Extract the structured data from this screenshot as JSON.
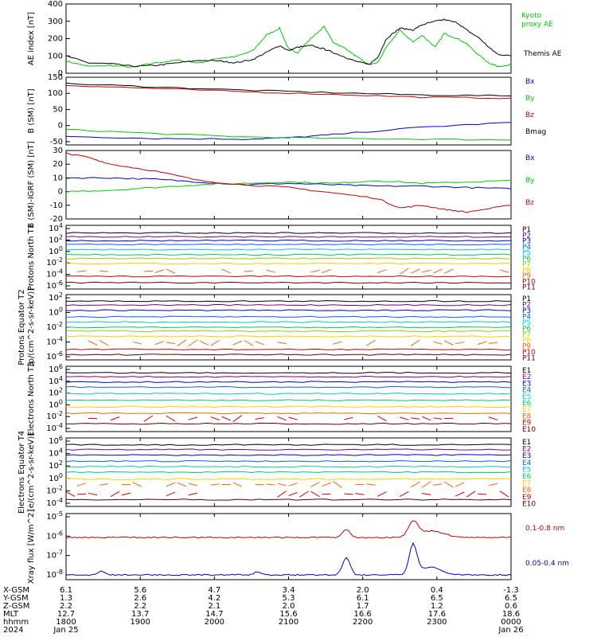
{
  "chart_data": [
    {
      "type": "line",
      "id": "ae",
      "ylabel": "AE index [nT]",
      "ylim": [
        0,
        400
      ],
      "yticks": [
        "0",
        "100",
        "200",
        "300",
        "400"
      ],
      "series": [
        {
          "name": "Kyoto proxy AE",
          "color": "#00cc00",
          "x": [
            0,
            0.05,
            0.1,
            0.15,
            0.2,
            0.25,
            0.3,
            0.35,
            0.38,
            0.42,
            0.45,
            0.48,
            0.5,
            0.52,
            0.55,
            0.58,
            0.6,
            0.63,
            0.65,
            0.68,
            0.7,
            0.72,
            0.75,
            0.78,
            0.8,
            0.83,
            0.85,
            0.88,
            0.9,
            0.93,
            0.95,
            0.97,
            1.0
          ],
          "y": [
            70,
            40,
            45,
            35,
            60,
            75,
            60,
            90,
            95,
            130,
            220,
            260,
            140,
            120,
            200,
            270,
            180,
            140,
            100,
            50,
            60,
            150,
            250,
            180,
            220,
            150,
            230,
            200,
            170,
            100,
            60,
            40,
            50
          ]
        },
        {
          "name": "Themis AE",
          "color": "#000000",
          "x": [
            0,
            0.05,
            0.1,
            0.15,
            0.2,
            0.25,
            0.3,
            0.35,
            0.38,
            0.42,
            0.45,
            0.48,
            0.5,
            0.52,
            0.55,
            0.58,
            0.6,
            0.63,
            0.65,
            0.68,
            0.7,
            0.72,
            0.75,
            0.78,
            0.8,
            0.83,
            0.85,
            0.88,
            0.9,
            0.93,
            0.95,
            0.97,
            1.0
          ],
          "y": [
            100,
            60,
            55,
            40,
            45,
            60,
            75,
            70,
            60,
            80,
            120,
            160,
            130,
            150,
            160,
            140,
            120,
            90,
            70,
            50,
            90,
            200,
            260,
            250,
            280,
            300,
            310,
            290,
            250,
            200,
            150,
            110,
            100
          ]
        }
      ]
    },
    {
      "type": "line",
      "id": "bsm",
      "ylabel": "B (SM) [nT]",
      "ylim": [
        -60,
        150
      ],
      "yticks": [
        "-50",
        "0",
        "50",
        "100",
        "150"
      ],
      "legend": [
        "Bx",
        "By",
        "Bz",
        "Bmag"
      ],
      "series": [
        {
          "name": "Bx",
          "color": "#0000cc",
          "x": [
            0,
            0.2,
            0.4,
            0.5,
            0.6,
            0.8,
            1.0
          ],
          "y": [
            -33,
            -40,
            -42,
            -38,
            -28,
            -5,
            10
          ]
        },
        {
          "name": "By",
          "color": "#00cc00",
          "x": [
            0,
            0.2,
            0.4,
            0.6,
            0.8,
            1.0
          ],
          "y": [
            -12,
            -25,
            -35,
            -40,
            -42,
            -45
          ]
        },
        {
          "name": "Bz",
          "color": "#cc0000",
          "x": [
            0,
            0.2,
            0.4,
            0.6,
            0.8,
            1.0
          ],
          "y": [
            125,
            115,
            105,
            97,
            88,
            85
          ]
        },
        {
          "name": "Bmag",
          "color": "#000000",
          "x": [
            0,
            0.2,
            0.4,
            0.6,
            0.8,
            1.0
          ],
          "y": [
            130,
            120,
            110,
            102,
            95,
            92
          ]
        }
      ]
    },
    {
      "type": "line",
      "id": "bigrf",
      "ylabel": "B (SM)-IGRF (SM) [nT]",
      "ylim": [
        -20,
        30
      ],
      "yticks": [
        "-20",
        "-10",
        "0",
        "10",
        "20",
        "30"
      ],
      "legend": [
        "Bx",
        "By",
        "Bz"
      ],
      "series": [
        {
          "name": "Bx",
          "color": "#0000cc",
          "x": [
            0,
            0.1,
            0.2,
            0.3,
            0.4,
            0.5,
            0.6,
            0.7,
            0.8,
            0.9,
            1.0
          ],
          "y": [
            10,
            10,
            9,
            7,
            5,
            6,
            5,
            4,
            4,
            3,
            2
          ]
        },
        {
          "name": "By",
          "color": "#00cc00",
          "x": [
            0,
            0.1,
            0.2,
            0.3,
            0.4,
            0.5,
            0.6,
            0.7,
            0.8,
            0.9,
            1.0
          ],
          "y": [
            0,
            1,
            3,
            5,
            6,
            7,
            6,
            8,
            6,
            7,
            8
          ]
        },
        {
          "name": "Bz",
          "color": "#cc0000",
          "x": [
            0,
            0.05,
            0.1,
            0.2,
            0.3,
            0.4,
            0.5,
            0.6,
            0.7,
            0.75,
            0.8,
            0.85,
            0.9,
            1.0
          ],
          "y": [
            28,
            25,
            20,
            15,
            8,
            5,
            3,
            -1,
            -5,
            -12,
            -10,
            -13,
            -15,
            -10
          ]
        }
      ]
    },
    {
      "type": "line",
      "id": "pn",
      "ylabel": "Protons North T1",
      "logticks": [
        "10^-6",
        "10^-4",
        "10^-2",
        "10^0",
        "10^2",
        "10^4"
      ],
      "legend": [
        "P1",
        "P2",
        "P3",
        "P4",
        "P5",
        "P6",
        "P7",
        "P8",
        "P9",
        "P10",
        "P11"
      ]
    },
    {
      "type": "line",
      "id": "pe",
      "ylabel": "Protons Equator T2",
      "unit": "[p/(cm^2-s-sr-keV)]",
      "logticks": [
        "10^-6",
        "10^-4",
        "10^-2",
        "10^0",
        "10^2"
      ],
      "legend": [
        "P1",
        "P2",
        "P3",
        "P4",
        "P5",
        "P6",
        "P7",
        "P8",
        "P9",
        "P10",
        "P11"
      ]
    },
    {
      "type": "line",
      "id": "en",
      "ylabel": "Electrons North T3",
      "logticks": [
        "10^-4",
        "10^-2",
        "10^0",
        "10^2",
        "10^4",
        "10^6"
      ],
      "legend": [
        "E1",
        "E2",
        "E3",
        "E4",
        "E5",
        "E6",
        "E7",
        "E8",
        "E9",
        "E10"
      ]
    },
    {
      "type": "line",
      "id": "ee",
      "ylabel": "Electrons Equator T4",
      "unit": "[e/(cm^2-s-sr-keV)]",
      "logticks": [
        "10^-4",
        "10^-2",
        "10^0",
        "10^2",
        "10^4",
        "10^6"
      ],
      "legend": [
        "E1",
        "E2",
        "E3",
        "E4",
        "E5",
        "E6",
        "E7",
        "E8",
        "E9",
        "E10"
      ]
    },
    {
      "type": "line",
      "id": "xray",
      "ylabel": "Xray flux [W/m^2]",
      "logticks": [
        "10^-8",
        "10^-7",
        "10^-6",
        "10^-5"
      ],
      "series": [
        {
          "name": "0.1-0.8 nm",
          "color": "#cc0000"
        },
        {
          "name": "0.05-0.4 nm",
          "color": "#0000cc"
        }
      ]
    }
  ],
  "ephemeris": {
    "rows": [
      {
        "label": "X-GSM",
        "values": [
          "6.1",
          "5.6",
          "4.7",
          "3.4",
          "2.0",
          "0.4",
          "-1.3"
        ]
      },
      {
        "label": "Y-GSM",
        "values": [
          "1.3",
          "2.6",
          "4.2",
          "5.3",
          "6.1",
          "6.5",
          "6.5"
        ]
      },
      {
        "label": "Z-GSM",
        "values": [
          "2.2",
          "2.2",
          "2.1",
          "2.0",
          "1.7",
          "1.2",
          "0.6"
        ]
      },
      {
        "label": "MLT",
        "values": [
          "12.7",
          "13.7",
          "14.7",
          "15.6",
          "16.6",
          "17.6",
          "18.6"
        ]
      },
      {
        "label": "hhmm",
        "values": [
          "1800",
          "1900",
          "2000",
          "2100",
          "2200",
          "2300",
          "0000"
        ]
      }
    ],
    "year": "2024",
    "date_start": "Jan 25",
    "date_end": "Jan 26"
  },
  "colors": {
    "P": [
      "#000000",
      "#800080",
      "#0000cc",
      "#0066ff",
      "#00cccc",
      "#00cc66",
      "#99cc00",
      "#ffcc00",
      "#ff6600",
      "#cc0000",
      "#660000"
    ],
    "E": [
      "#000000",
      "#800080",
      "#0000cc",
      "#0066ff",
      "#00cccc",
      "#00cc66",
      "#ffcc00",
      "#ff6600",
      "#cc0000",
      "#660000"
    ]
  }
}
